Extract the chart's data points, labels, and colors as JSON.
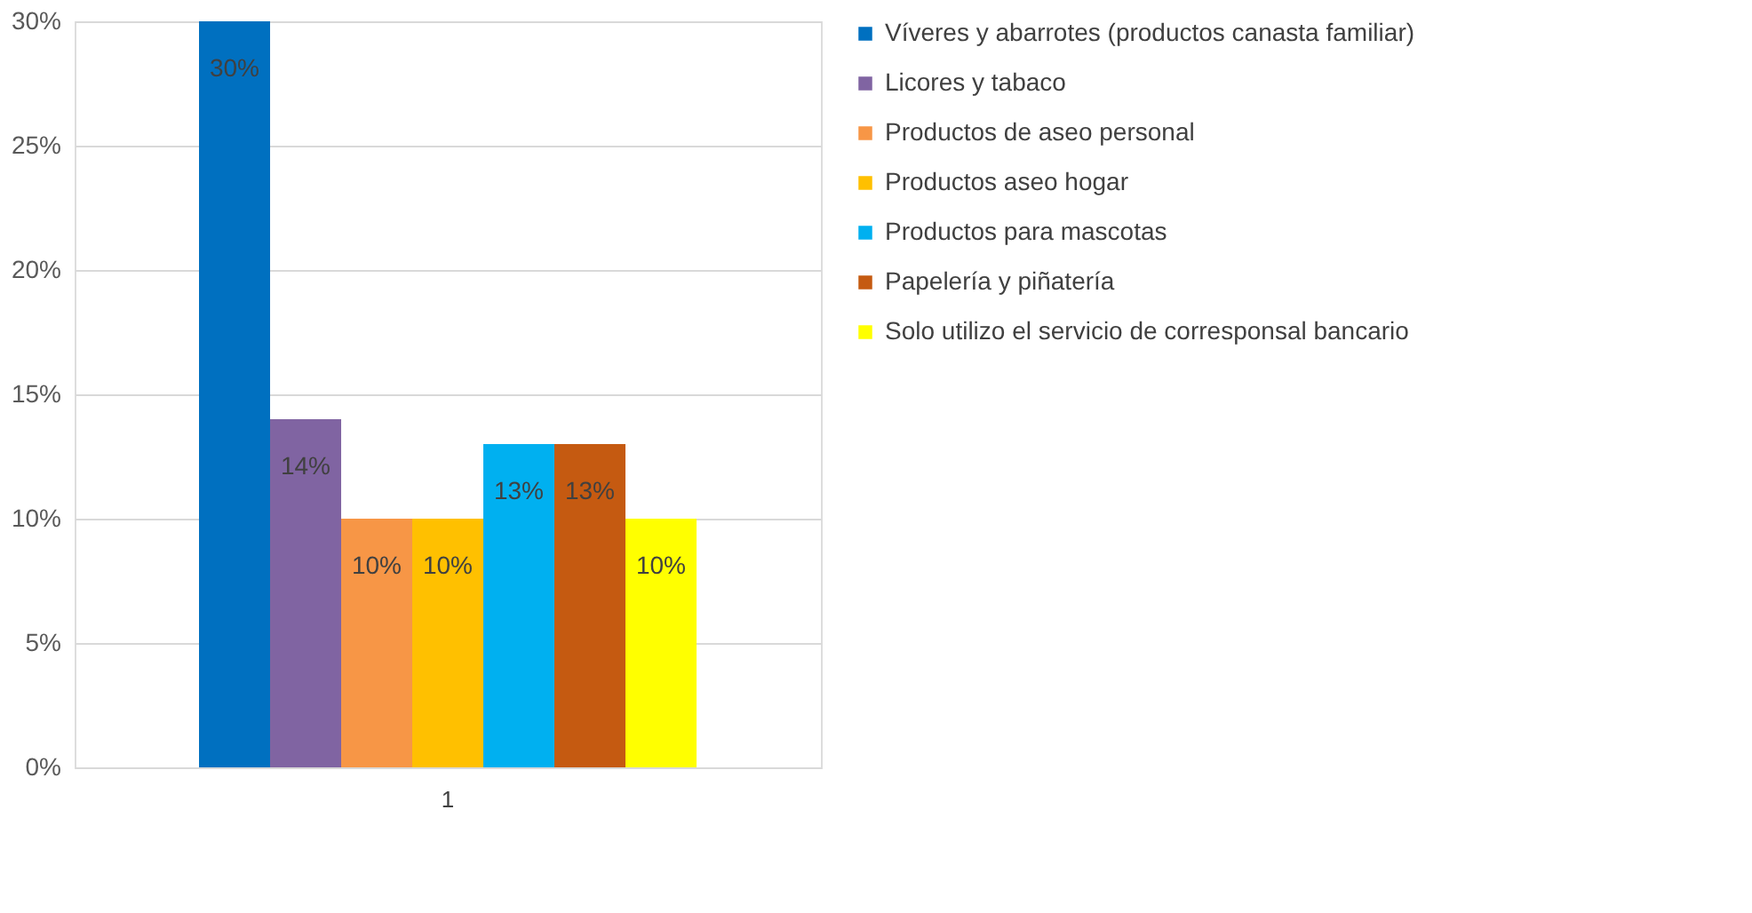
{
  "chart_data": {
    "type": "bar",
    "categories": [
      "1"
    ],
    "ylim": [
      0,
      30
    ],
    "yticks": [
      {
        "value": 0,
        "label": "0%"
      },
      {
        "value": 5,
        "label": "5%"
      },
      {
        "value": 10,
        "label": "10%"
      },
      {
        "value": 15,
        "label": "15%"
      },
      {
        "value": 20,
        "label": "20%"
      },
      {
        "value": 25,
        "label": "25%"
      },
      {
        "value": 30,
        "label": "30%"
      }
    ],
    "grid": "y",
    "legend": "right",
    "series": [
      {
        "name": "Víveres y abarrotes (productos canasta familiar)",
        "color": "#0070c0",
        "values": [
          30
        ],
        "value_labels": [
          "30%"
        ]
      },
      {
        "name": "Licores y tabaco",
        "color": "#8064a2",
        "values": [
          14
        ],
        "value_labels": [
          "14%"
        ]
      },
      {
        "name": "Productos de aseo personal",
        "color": "#f79646",
        "values": [
          10
        ],
        "value_labels": [
          "10%"
        ]
      },
      {
        "name": "Productos aseo hogar",
        "color": "#ffc000",
        "values": [
          10
        ],
        "value_labels": [
          "10%"
        ]
      },
      {
        "name": "Productos para mascotas",
        "color": "#00b0f0",
        "values": [
          13
        ],
        "value_labels": [
          "13%"
        ]
      },
      {
        "name": "Papelería y piñatería",
        "color": "#c55a11",
        "values": [
          13
        ],
        "value_labels": [
          "13%"
        ]
      },
      {
        "name": "Solo utilizo el servicio de corresponsal bancario",
        "color": "#ffff00",
        "values": [
          10
        ],
        "value_labels": [
          "10%"
        ]
      }
    ]
  }
}
